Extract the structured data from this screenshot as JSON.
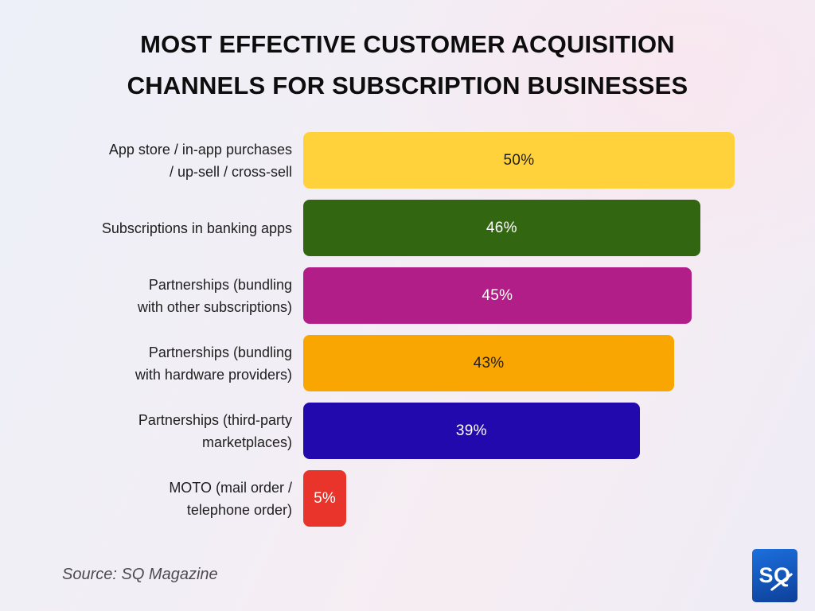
{
  "title": "MOST EFFECTIVE CUSTOMER ACQUISITION\nCHANNELS FOR SUBSCRIPTION BUSINESSES",
  "source": "Source: SQ Magazine",
  "logo": {
    "text": "SQ",
    "bg_top": "#1b70dd",
    "bg_bottom": "#0e3f99"
  },
  "chart_data": {
    "type": "bar",
    "orientation": "horizontal",
    "title": "MOST EFFECTIVE CUSTOMER ACQUISITION CHANNELS FOR SUBSCRIPTION BUSINESSES",
    "xlabel": "",
    "ylabel": "",
    "xlim": [
      0,
      50
    ],
    "grid": false,
    "legend": false,
    "categories": [
      "App store / in-app purchases\n/ up-sell / cross-sell",
      "Subscriptions in banking apps",
      "Partnerships (bundling\nwith other subscriptions)",
      "Partnerships (bundling\nwith hardware providers)",
      "Partnerships (third-party\nmarketplaces)",
      "MOTO (mail order /\ntelephone order)"
    ],
    "values": [
      50,
      46,
      45,
      43,
      39,
      5
    ],
    "value_labels": [
      "50%",
      "46%",
      "45%",
      "43%",
      "39%",
      "5%"
    ],
    "bar_colors": [
      "#FFD23B",
      "#336611",
      "#B21E87",
      "#F9A602",
      "#2209AE",
      "#E8342B"
    ],
    "value_text_colors": [
      "#1f1f1f",
      "#ffffff",
      "#ffffff",
      "#1f1f1f",
      "#ffffff",
      "#ffffff"
    ]
  }
}
